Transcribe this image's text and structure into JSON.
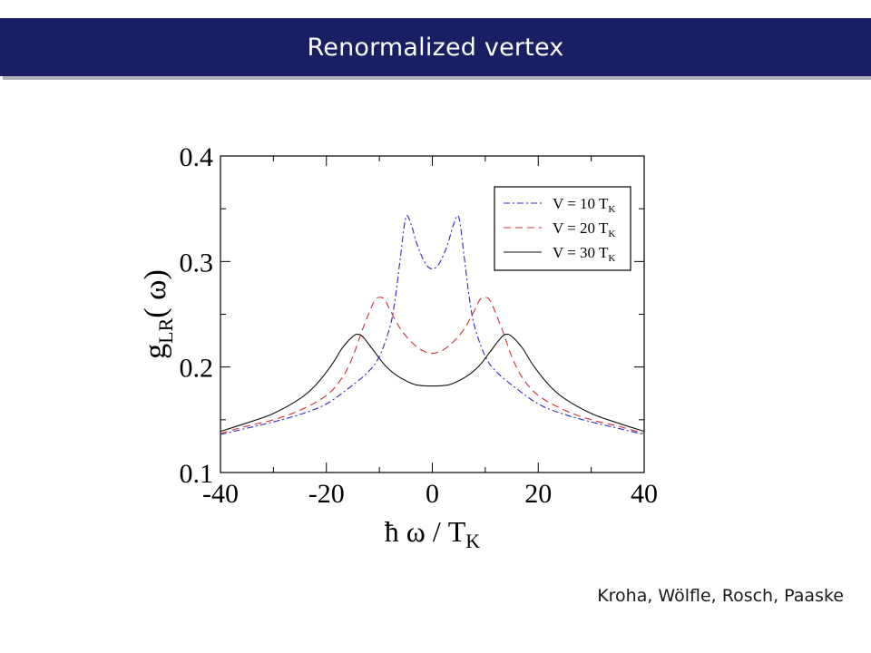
{
  "slide": {
    "title": "Renormalized vertex",
    "credit": "Kroha, Wölfle, Rosch, Paaske"
  },
  "chart_data": {
    "type": "line",
    "title": "",
    "xlabel": "ħ ω / T",
    "xlabel_sub": "K",
    "ylabel": "g",
    "ylabel_sub": "LR",
    "ylabel_tail": "( ω)",
    "xlim": [
      -40,
      40
    ],
    "ylim": [
      0.1,
      0.4
    ],
    "xticks": [
      -40,
      -20,
      0,
      20,
      40
    ],
    "yticks": [
      0.1,
      0.2,
      0.3,
      0.4
    ],
    "xtick_labels": [
      "-40",
      "-20",
      "0",
      "20",
      "40"
    ],
    "ytick_labels": [
      "0.1",
      "0.2",
      "0.3",
      "0.4"
    ],
    "grid": false,
    "legend_position": "top-right",
    "series": [
      {
        "name": "V = 10 T",
        "name_sub": "K",
        "color": "#2b2bc8",
        "dash": "dashdot",
        "x": [
          -40,
          -35,
          -30,
          -25,
          -20,
          -15,
          -12,
          -10,
          -8,
          -7,
          -6,
          -5,
          -4,
          -3,
          -2,
          -1,
          0,
          1,
          2,
          3,
          4,
          5,
          6,
          7,
          8,
          10,
          12,
          15,
          20,
          25,
          30,
          35,
          40
        ],
        "y": [
          0.136,
          0.142,
          0.148,
          0.155,
          0.165,
          0.183,
          0.196,
          0.21,
          0.238,
          0.265,
          0.305,
          0.342,
          0.335,
          0.318,
          0.305,
          0.296,
          0.293,
          0.296,
          0.305,
          0.318,
          0.335,
          0.342,
          0.305,
          0.265,
          0.238,
          0.21,
          0.196,
          0.183,
          0.165,
          0.155,
          0.148,
          0.142,
          0.136
        ]
      },
      {
        "name": "V = 20 T",
        "name_sub": "K",
        "color": "#d03030",
        "dash": "dashed",
        "x": [
          -40,
          -35,
          -30,
          -25,
          -20,
          -17,
          -15,
          -13,
          -11,
          -10,
          -9,
          -8,
          -6,
          -4,
          -2,
          0,
          2,
          4,
          6,
          8,
          9,
          10,
          11,
          13,
          15,
          17,
          20,
          25,
          30,
          35,
          40
        ],
        "y": [
          0.137,
          0.144,
          0.15,
          0.159,
          0.173,
          0.19,
          0.21,
          0.238,
          0.262,
          0.266,
          0.264,
          0.254,
          0.236,
          0.224,
          0.216,
          0.213,
          0.216,
          0.224,
          0.236,
          0.254,
          0.264,
          0.266,
          0.262,
          0.238,
          0.21,
          0.19,
          0.173,
          0.159,
          0.15,
          0.144,
          0.137
        ]
      },
      {
        "name": "V = 30 T",
        "name_sub": "K",
        "color": "#111111",
        "dash": "solid",
        "x": [
          -40,
          -35,
          -30,
          -25,
          -22,
          -19,
          -17,
          -15,
          -14,
          -13,
          -11,
          -9,
          -7,
          -5,
          -3,
          0,
          3,
          5,
          7,
          9,
          11,
          13,
          14,
          15,
          17,
          19,
          22,
          25,
          30,
          35,
          40
        ],
        "y": [
          0.139,
          0.147,
          0.156,
          0.17,
          0.183,
          0.202,
          0.218,
          0.229,
          0.231,
          0.228,
          0.215,
          0.202,
          0.193,
          0.187,
          0.183,
          0.182,
          0.183,
          0.187,
          0.193,
          0.202,
          0.215,
          0.228,
          0.231,
          0.229,
          0.218,
          0.202,
          0.183,
          0.17,
          0.156,
          0.147,
          0.139
        ]
      }
    ]
  }
}
